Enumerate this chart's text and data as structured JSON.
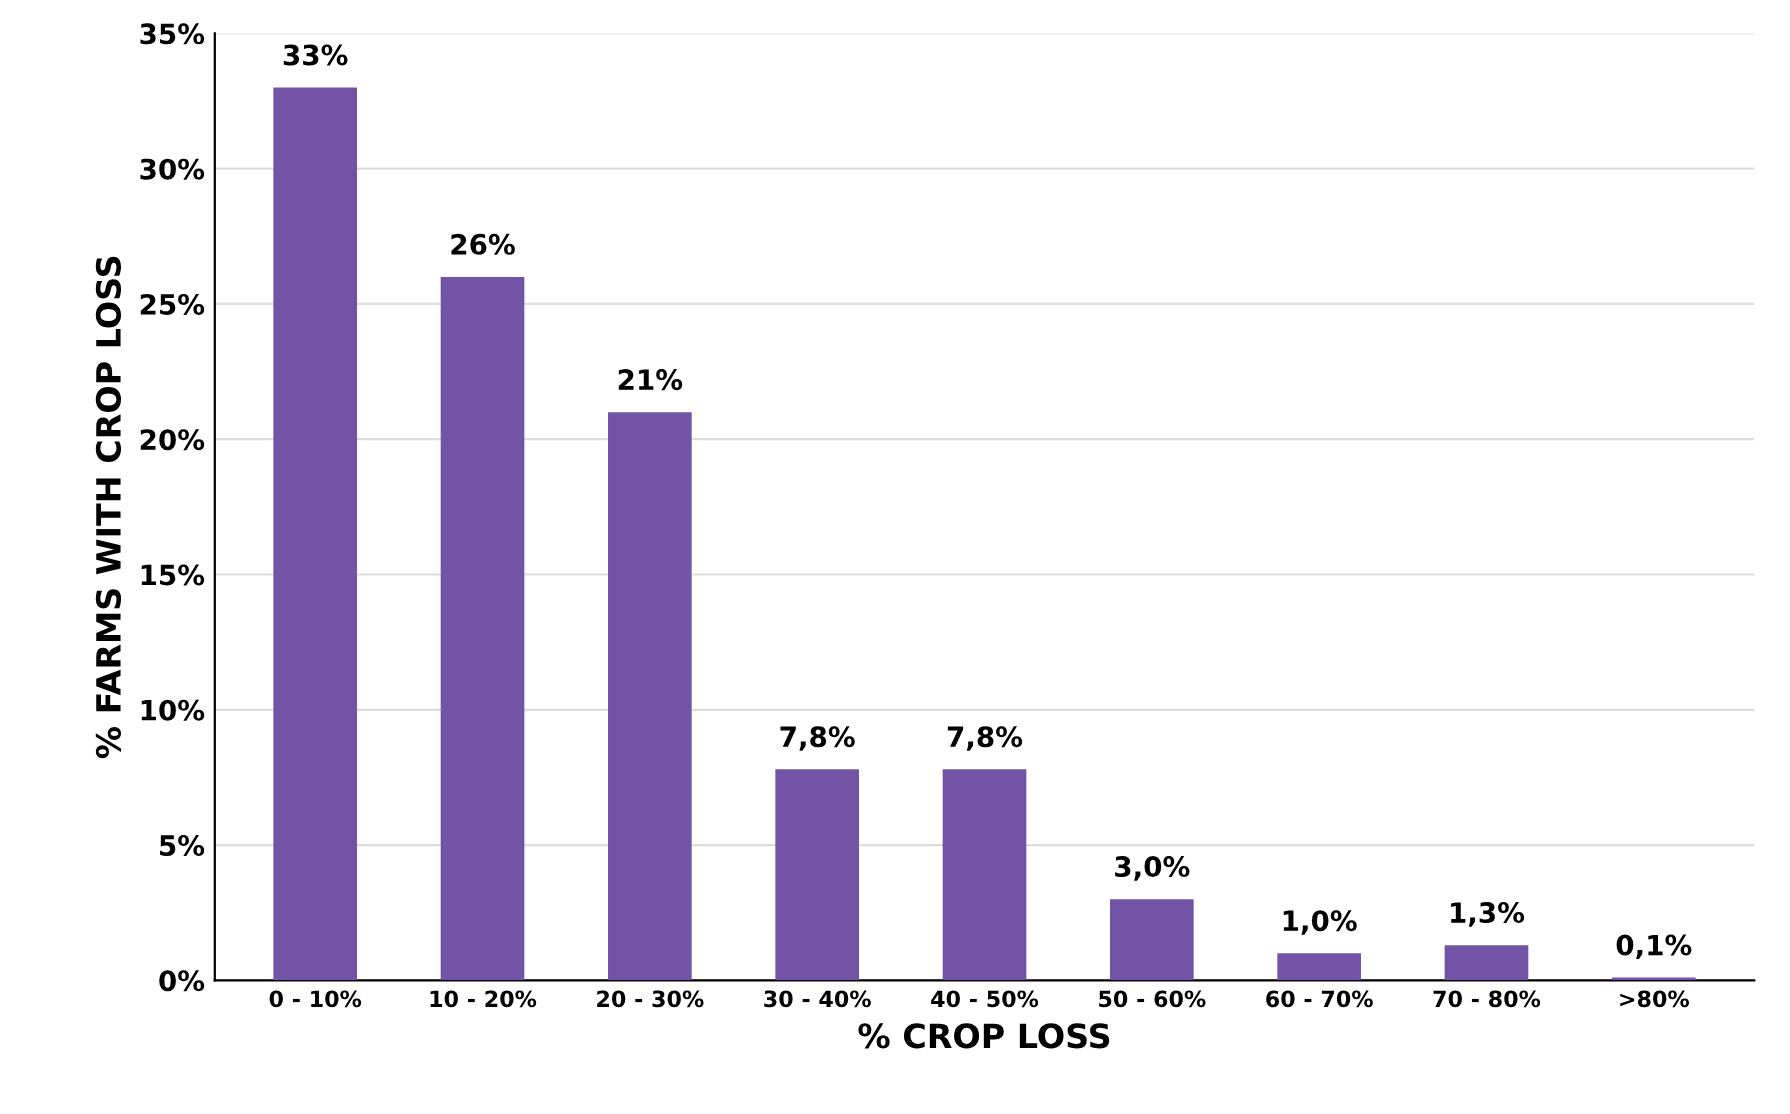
{
  "chart_data": {
    "type": "bar",
    "xlabel": "% CROP LOSS",
    "ylabel": "% FARMS WITH CROP LOSS",
    "categories": [
      "0 - 10%",
      "10 - 20%",
      "20 - 30%",
      "30 - 40%",
      "40 - 50%",
      "50 - 60%",
      "60 - 70%",
      "70 - 80%",
      ">80%"
    ],
    "values": [
      33,
      26,
      21,
      7.8,
      7.8,
      3.0,
      1.0,
      1.3,
      0.1
    ],
    "value_labels": [
      "33%",
      "26%",
      "21%",
      "7,8%",
      "7,8%",
      "3,0%",
      "1,0%",
      "1,3%",
      "0,1%"
    ],
    "color": "#7353a6",
    "ylim": [
      0,
      35
    ],
    "yticks": [
      {
        "value": 0,
        "label": "0%"
      },
      {
        "value": 5,
        "label": "5%"
      },
      {
        "value": 10,
        "label": "10%"
      },
      {
        "value": 15,
        "label": "15%"
      },
      {
        "value": 20,
        "label": "20%"
      },
      {
        "value": 25,
        "label": "25%"
      },
      {
        "value": 30,
        "label": "30%"
      },
      {
        "value": 35,
        "label": "35%"
      }
    ],
    "grid": "y"
  }
}
